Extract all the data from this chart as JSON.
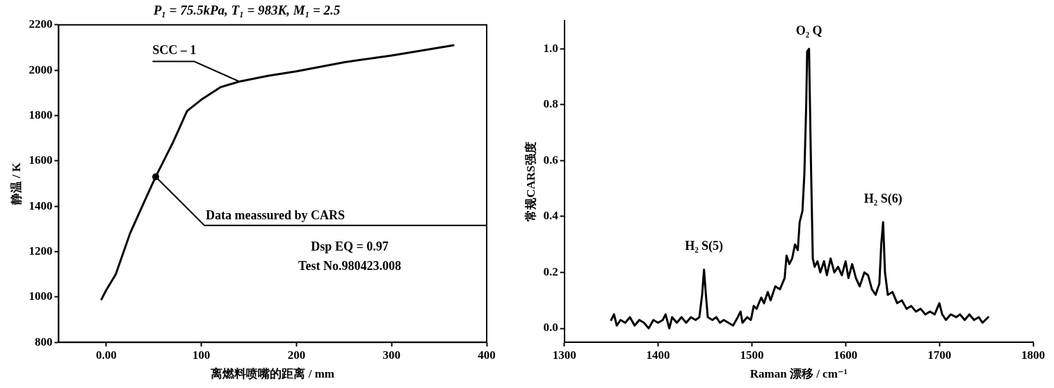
{
  "chart_data": [
    {
      "type": "line",
      "title": "P₁ = 75.5kPa, T₁ = 983K, M₁ = 2.5",
      "xlabel": "离燃料喷嘴的距离 / mm",
      "ylabel": "静温 / K",
      "xlim": [
        -50,
        400
      ],
      "xticks": [
        {
          "value": 0,
          "label": "0.00"
        },
        100,
        200,
        300,
        400
      ],
      "ylim": [
        800,
        2200
      ],
      "yticks": [
        800,
        1000,
        1200,
        1400,
        1600,
        1800,
        2000,
        2200
      ],
      "series": [
        {
          "color": "#000000",
          "x": [
            -5,
            0,
            10,
            25,
            40,
            52,
            70,
            85,
            100,
            120,
            140,
            170,
            200,
            250,
            300,
            365
          ],
          "values": [
            990,
            1030,
            1100,
            1280,
            1420,
            1530,
            1680,
            1820,
            1870,
            1925,
            1950,
            1975,
            1995,
            2035,
            2065,
            2110
          ]
        }
      ],
      "annotations": [
        {
          "text": "SCC – 1",
          "x": 140,
          "y": 1950
        },
        {
          "text": "Data meassured by CARS",
          "x": 52,
          "y": 1530
        },
        "Dsp EQ = 0.97",
        "Test No.980423.008"
      ],
      "grid": false,
      "legend": false,
      "marker": "none",
      "line_style": "solid"
    },
    {
      "type": "line",
      "xlabel": "Raman 漂移 / cm⁻¹",
      "ylabel": "常规CARS强度",
      "xlim": [
        1300,
        1800
      ],
      "xticks": [
        1300,
        1400,
        1500,
        1600,
        1700,
        1800
      ],
      "ylim": [
        -0.05,
        1.1
      ],
      "yticks": [
        {
          "value": 0,
          "label": "0.0"
        },
        0.2,
        0.4,
        0.6,
        0.8,
        {
          "value": 1,
          "label": "1.0"
        }
      ],
      "series": [
        {
          "color": "#000000",
          "x": [
            1350,
            1353,
            1356,
            1360,
            1365,
            1370,
            1375,
            1380,
            1385,
            1390,
            1395,
            1400,
            1405,
            1408,
            1412,
            1415,
            1420,
            1425,
            1430,
            1435,
            1440,
            1444,
            1447,
            1449,
            1451,
            1453,
            1458,
            1462,
            1466,
            1470,
            1475,
            1480,
            1485,
            1488,
            1490,
            1495,
            1499,
            1502,
            1505,
            1510,
            1513,
            1517,
            1520,
            1525,
            1530,
            1535,
            1537,
            1540,
            1543,
            1546,
            1549,
            1551,
            1554,
            1556,
            1558,
            1559,
            1561,
            1563,
            1565,
            1567,
            1570,
            1573,
            1577,
            1580,
            1584,
            1588,
            1592,
            1596,
            1600,
            1603,
            1607,
            1611,
            1615,
            1620,
            1624,
            1628,
            1632,
            1636,
            1638,
            1640,
            1642,
            1645,
            1650,
            1655,
            1660,
            1665,
            1670,
            1675,
            1680,
            1685,
            1690,
            1695,
            1700,
            1703,
            1707,
            1712,
            1718,
            1722,
            1727,
            1732,
            1737,
            1742,
            1746,
            1752
          ],
          "values": [
            0.03,
            0.05,
            0.01,
            0.03,
            0.02,
            0.04,
            0.01,
            0.03,
            0.02,
            0.0,
            0.03,
            0.02,
            0.03,
            0.05,
            0.0,
            0.04,
            0.02,
            0.04,
            0.02,
            0.04,
            0.03,
            0.04,
            0.12,
            0.21,
            0.12,
            0.04,
            0.03,
            0.04,
            0.02,
            0.03,
            0.02,
            0.01,
            0.04,
            0.06,
            0.02,
            0.04,
            0.03,
            0.08,
            0.07,
            0.11,
            0.09,
            0.13,
            0.1,
            0.15,
            0.14,
            0.18,
            0.26,
            0.23,
            0.25,
            0.3,
            0.28,
            0.38,
            0.42,
            0.55,
            0.8,
            0.99,
            1.0,
            0.6,
            0.25,
            0.22,
            0.24,
            0.2,
            0.24,
            0.19,
            0.25,
            0.2,
            0.22,
            0.19,
            0.24,
            0.18,
            0.23,
            0.18,
            0.15,
            0.2,
            0.19,
            0.14,
            0.12,
            0.16,
            0.3,
            0.38,
            0.2,
            0.12,
            0.13,
            0.09,
            0.1,
            0.07,
            0.08,
            0.06,
            0.07,
            0.05,
            0.06,
            0.05,
            0.09,
            0.05,
            0.03,
            0.05,
            0.04,
            0.05,
            0.03,
            0.05,
            0.03,
            0.04,
            0.02,
            0.04
          ]
        }
      ],
      "annotations": [
        {
          "text": "H₂ S(5)",
          "x": 1449,
          "y": 0.21
        },
        {
          "text": "O₂ Q",
          "x": 1561,
          "y": 1.0
        },
        {
          "text": "H₂ S(6)",
          "x": 1640,
          "y": 0.38
        }
      ],
      "grid": false,
      "legend": false,
      "marker": "none",
      "line_style": "solid"
    }
  ]
}
